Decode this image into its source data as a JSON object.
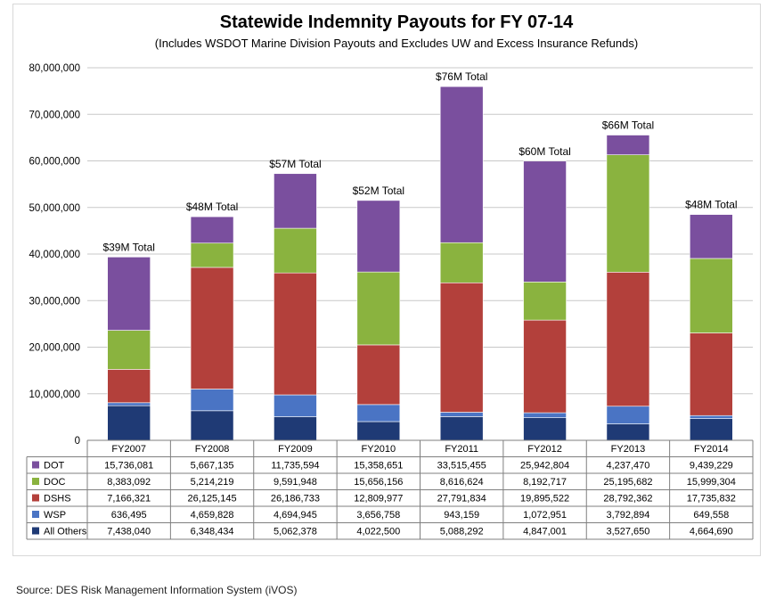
{
  "chart_data": {
    "type": "bar",
    "stacked": true,
    "title": "Statewide Indemnity Payouts for FY 07-14",
    "subtitle": "(Includes WSDOT Marine Division Payouts and Excludes UW and Excess Insurance Refunds)",
    "categories": [
      "FY2007",
      "FY2008",
      "FY2009",
      "FY2010",
      "FY2011",
      "FY2012",
      "FY2013",
      "FY2014"
    ],
    "totals_labels": [
      "$39M Total",
      "$48M Total",
      "$57M Total",
      "$52M Total",
      "$76M Total",
      "$60M Total",
      "$66M Total",
      "$48M Total"
    ],
    "ylim": [
      0,
      80000000
    ],
    "yticks": [
      0,
      10000000,
      20000000,
      30000000,
      40000000,
      50000000,
      60000000,
      70000000,
      80000000
    ],
    "ytick_labels": [
      "0",
      "10,000,000",
      "20,000,000",
      "30,000,000",
      "40,000,000",
      "50,000,000",
      "60,000,000",
      "70,000,000",
      "80,000,000"
    ],
    "grid": true,
    "legend": "data-table",
    "series": [
      {
        "name": "DOT",
        "color": "#7a4f9e",
        "values": [
          15736081,
          5667135,
          11735594,
          15358651,
          33515455,
          25942804,
          4237470,
          9439229
        ],
        "labels": [
          "15,736,081",
          "5,667,135",
          "11,735,594",
          "15,358,651",
          "33,515,455",
          "25,942,804",
          "4,237,470",
          "9,439,229"
        ]
      },
      {
        "name": "DOC",
        "color": "#8ab33f",
        "values": [
          8383092,
          5214219,
          9591948,
          15656156,
          8616624,
          8192717,
          25195682,
          15999304
        ],
        "labels": [
          "8,383,092",
          "5,214,219",
          "9,591,948",
          "15,656,156",
          "8,616,624",
          "8,192,717",
          "25,195,682",
          "15,999,304"
        ]
      },
      {
        "name": "DSHS",
        "color": "#b3403b",
        "values": [
          7166321,
          26125145,
          26186733,
          12809977,
          27791834,
          19895522,
          28792362,
          17735832
        ],
        "labels": [
          "7,166,321",
          "26,125,145",
          "26,186,733",
          "12,809,977",
          "27,791,834",
          "19,895,522",
          "28,792,362",
          "17,735,832"
        ]
      },
      {
        "name": "WSP",
        "color": "#4a74c4",
        "values": [
          636495,
          4659828,
          4694945,
          3656758,
          943159,
          1072951,
          3792894,
          649558
        ],
        "labels": [
          "636,495",
          "4,659,828",
          "4,694,945",
          "3,656,758",
          "943,159",
          "1,072,951",
          "3,792,894",
          "649,558"
        ]
      },
      {
        "name": "All Others",
        "color": "#1f3a75",
        "values": [
          7438040,
          6348434,
          5062378,
          4022500,
          5088292,
          4847001,
          3527650,
          4664690
        ],
        "labels": [
          "7,438,040",
          "6,348,434",
          "5,062,378",
          "4,022,500",
          "5,088,292",
          "4,847,001",
          "3,527,650",
          "4,664,690"
        ]
      }
    ]
  },
  "source": "Source: DES Risk Management Information System (iVOS)"
}
